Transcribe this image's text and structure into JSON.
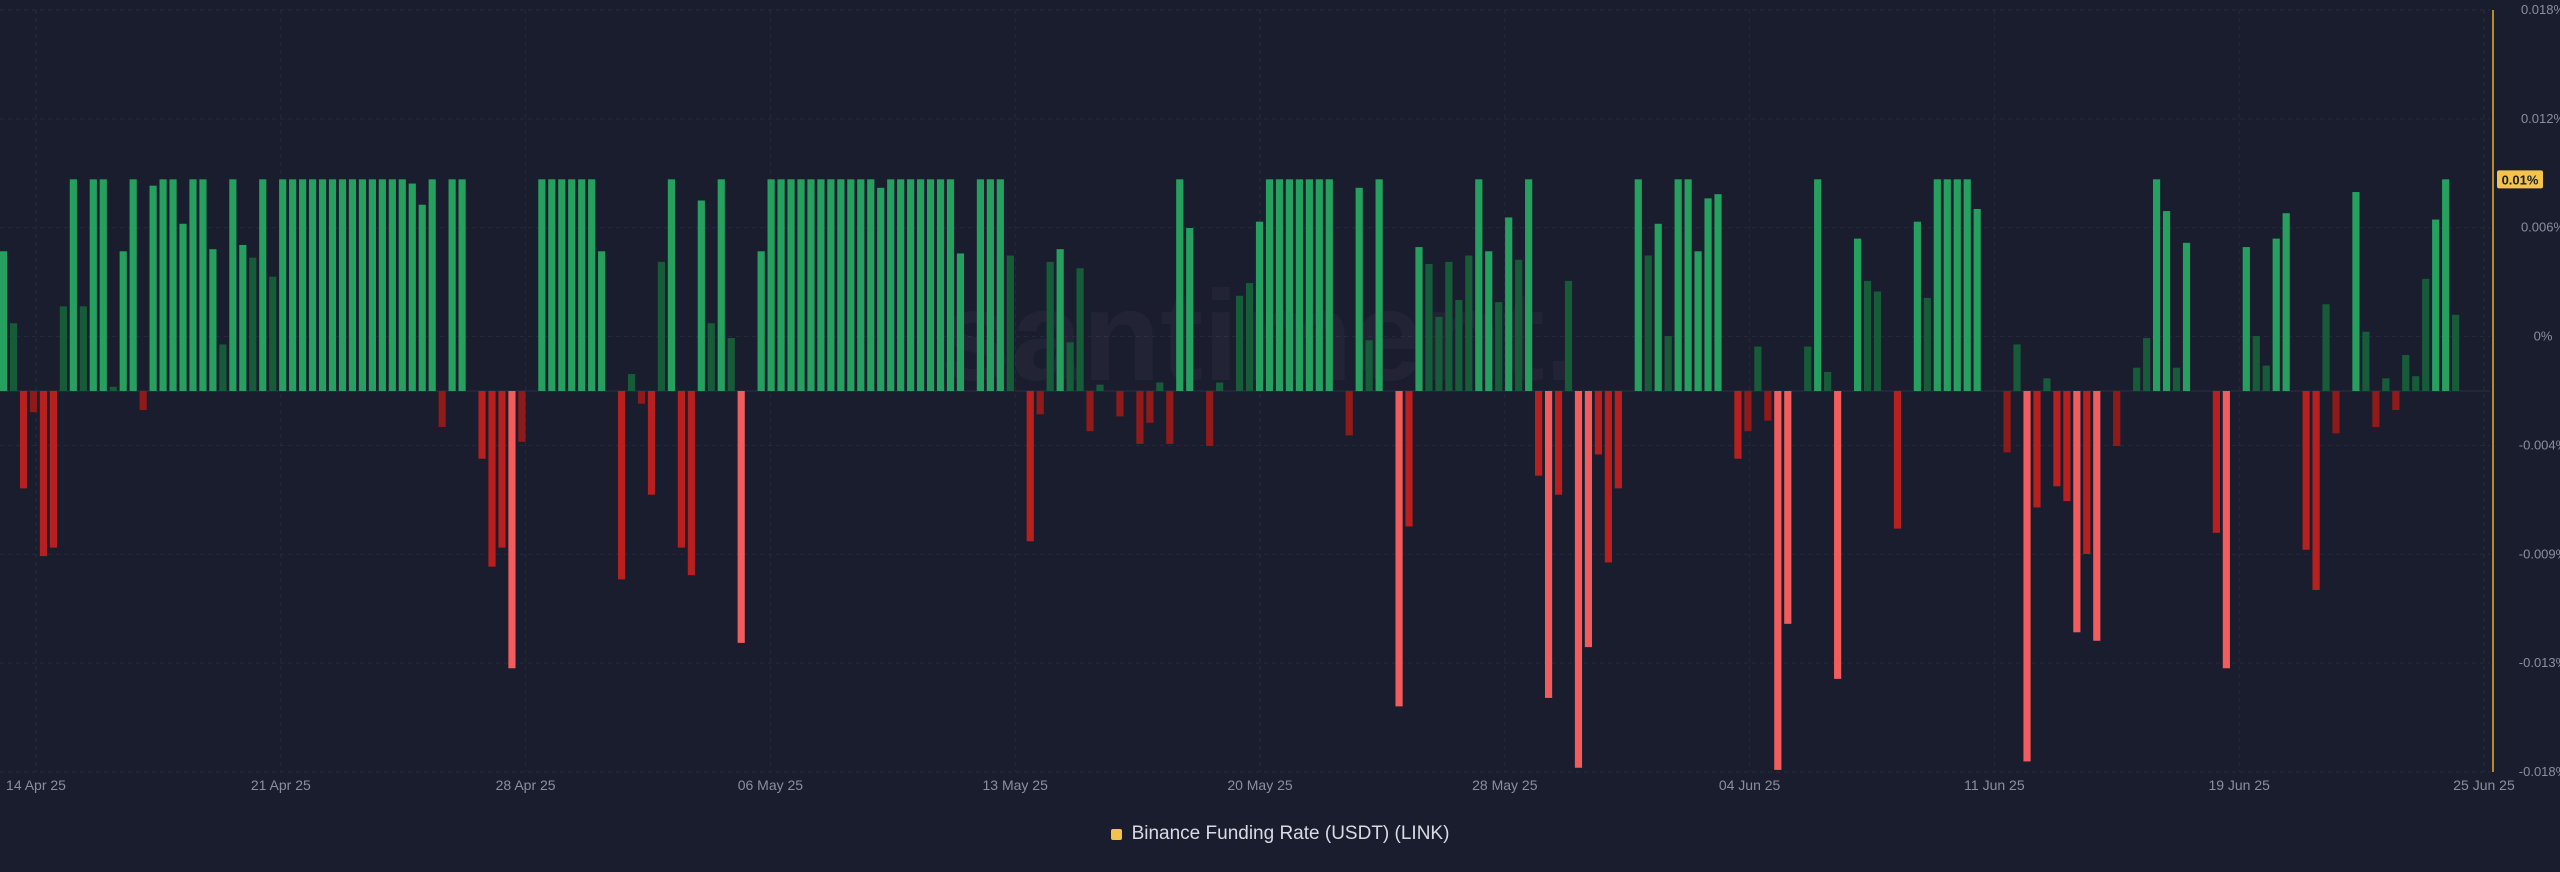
{
  "watermark": "santiment.",
  "legend": {
    "label": "Binance Funding Rate (USDT) (LINK)",
    "swatch_color": "#f3c34a"
  },
  "current_value_badge": "0.01%",
  "colors": {
    "background": "#1a1d2e",
    "positive_strong": "#26a05f",
    "positive_weak": "#175c38",
    "negative_strong": "#f25c5c",
    "negative_medium": "#b8201f",
    "negative_weak": "#8f1a1a",
    "axis_line": "#e6b422",
    "badge": "#f3c34a",
    "grid": "#262a3c",
    "tick_text": "#8a8f9f"
  },
  "chart_data": {
    "type": "bar",
    "title": "",
    "xlabel": "",
    "ylabel": "",
    "ylim": [
      -0.018,
      0.018
    ],
    "grid": true,
    "legend_placement": "bottom-center",
    "y_ticks": [
      "0.018%",
      "0.012%",
      "0.006%",
      "0%",
      "-0.004%",
      "-0.009%",
      "-0.013%",
      "-0.018%"
    ],
    "x_ticks": [
      "14 Apr 25",
      "21 Apr 25",
      "28 Apr 25",
      "06 May 25",
      "13 May 25",
      "20 May 25",
      "28 May 25",
      "04 Jun 25",
      "11 Jun 25",
      "19 Jun 25",
      "25 Jun 25"
    ],
    "x_range": [
      "2025-04-14",
      "2025-06-25"
    ],
    "x_interval": "8h",
    "series": [
      {
        "name": "Binance Funding Rate (USDT) (LINK)",
        "values": [
          0.0066,
          0.0032,
          -0.0046,
          -0.001,
          -0.0078,
          -0.0074,
          0.004,
          0.01,
          0.004,
          0.01,
          0.01,
          0.0002,
          0.0066,
          0.01,
          -0.0009,
          0.0097,
          0.01,
          0.01,
          0.0079,
          0.01,
          0.01,
          0.0067,
          0.0022,
          0.01,
          0.0069,
          0.0063,
          0.01,
          0.0054,
          0.01,
          0.01,
          0.01,
          0.01,
          0.01,
          0.01,
          0.01,
          0.01,
          0.01,
          0.01,
          0.01,
          0.01,
          0.01,
          0.0098,
          0.0088,
          0.01,
          -0.0017,
          0.01,
          0.01,
          0.0,
          -0.0032,
          -0.0083,
          -0.0074,
          -0.0131,
          -0.0024,
          0.0,
          0.01,
          0.01,
          0.01,
          0.01,
          0.01,
          0.01,
          0.0066,
          0.0,
          -0.0089,
          0.0008,
          -0.0006,
          -0.0049,
          0.0061,
          0.01,
          -0.0074,
          -0.0087,
          0.009,
          0.0032,
          0.01,
          0.0025,
          -0.0119,
          0.0,
          0.0066,
          0.01,
          0.01,
          0.01,
          0.01,
          0.01,
          0.01,
          0.01,
          0.01,
          0.01,
          0.01,
          0.01,
          0.0096,
          0.01,
          0.01,
          0.01,
          0.01,
          0.01,
          0.01,
          0.01,
          0.0065,
          0.0,
          0.01,
          0.01,
          0.01,
          0.0064,
          0.0,
          -0.0071,
          -0.0011,
          0.0061,
          0.0067,
          0.0023,
          0.0058,
          -0.0019,
          0.0003,
          0.0,
          -0.0012,
          0.0,
          -0.0025,
          -0.0015,
          0.0004,
          -0.0025,
          0.01,
          0.0077,
          0.0,
          -0.0026,
          0.0004,
          0.0,
          0.0045,
          0.0051,
          0.008,
          0.01,
          0.01,
          0.01,
          0.01,
          0.01,
          0.01,
          0.01,
          0.0,
          -0.0021,
          0.0096,
          0.0024,
          0.01,
          0.0,
          -0.0149,
          -0.0064,
          0.0068,
          0.006,
          0.0035,
          0.0061,
          0.0043,
          0.0064,
          0.01,
          0.0066,
          0.0042,
          0.0082,
          0.0062,
          0.01,
          -0.004,
          -0.0145,
          -0.0049,
          0.0052,
          -0.0178,
          -0.0121,
          -0.003,
          -0.0081,
          -0.0046,
          0.0,
          0.01,
          0.0064,
          0.0079,
          0.0026,
          0.01,
          0.01,
          0.0066,
          0.0091,
          0.0093,
          0.0,
          -0.0032,
          -0.0019,
          0.0021,
          -0.0014,
          -0.0179,
          -0.011,
          0.0,
          0.0021,
          0.01,
          0.0009,
          -0.0136,
          0.0,
          0.0072,
          0.0052,
          0.0047,
          0.0,
          -0.0065,
          0.0,
          0.008,
          0.0044,
          0.01,
          0.01,
          0.01,
          0.01,
          0.0086,
          0.0,
          0.0,
          -0.0029,
          0.0022,
          -0.0175,
          -0.0055,
          0.0006,
          -0.0045,
          -0.0052,
          -0.0114,
          -0.0077,
          -0.0118,
          0.0,
          -0.0026,
          0.0,
          0.0011,
          0.0025,
          0.01,
          0.0085,
          0.0011,
          0.007,
          0.0,
          0.0,
          -0.0067,
          -0.0131,
          0.0,
          0.0068,
          0.0026,
          0.0012,
          0.0072,
          0.0084,
          0.0,
          -0.0075,
          -0.0094,
          0.0041,
          -0.002,
          0.0,
          0.0094,
          0.0028,
          -0.0017,
          0.0006,
          -0.0009,
          0.0017,
          0.0007,
          0.0053,
          0.0081,
          0.01,
          0.0036
        ]
      }
    ]
  }
}
